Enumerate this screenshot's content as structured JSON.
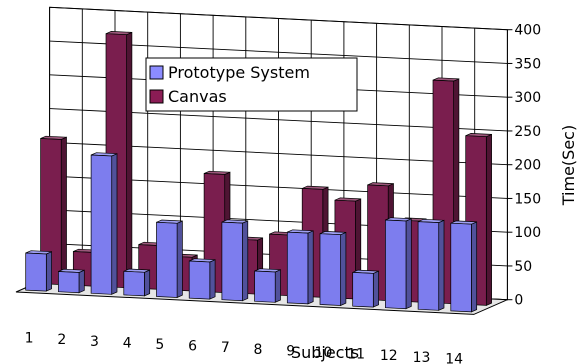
{
  "chart_data": {
    "type": "bar",
    "title": "",
    "xlabel": "Subjects",
    "ylabel": "Time(Sec)",
    "ylim": [
      0,
      400
    ],
    "yticks": [
      "0",
      "50",
      "100",
      "150",
      "200",
      "250",
      "300",
      "350",
      "400"
    ],
    "categories": [
      "1",
      "2",
      "3",
      "4",
      "5",
      "6",
      "7",
      "8",
      "9",
      "10",
      "11",
      "12",
      "13",
      "14"
    ],
    "grid": true,
    "legend_position": "top-center",
    "series": [
      {
        "name": "Canvas",
        "color": "#7a1e4e",
        "values": [
          215,
          50,
          375,
          65,
          50,
          175,
          80,
          90,
          160,
          145,
          170,
          120,
          330,
          250
        ]
      },
      {
        "name": "Prototype System",
        "color": "#7d7dee",
        "values": [
          55,
          30,
          205,
          35,
          110,
          55,
          115,
          45,
          105,
          105,
          50,
          130,
          130,
          130
        ]
      }
    ],
    "legend": [
      {
        "label": "Prototype System",
        "color": "#8c8cff"
      },
      {
        "label": "Canvas",
        "color": "#8b1c55"
      }
    ]
  }
}
